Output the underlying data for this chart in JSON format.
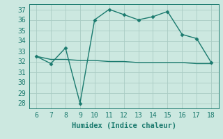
{
  "line1_x": [
    6,
    7,
    8,
    9,
    10,
    11,
    12,
    13,
    14,
    15,
    16,
    17,
    18
  ],
  "line1_y": [
    32.5,
    31.8,
    33.3,
    28.0,
    36.0,
    37.0,
    36.5,
    36.0,
    36.3,
    36.8,
    34.6,
    34.2,
    31.9
  ],
  "line2_x": [
    6,
    7,
    8,
    9,
    10,
    11,
    12,
    13,
    14,
    15,
    16,
    17,
    18
  ],
  "line2_y": [
    32.5,
    32.2,
    32.2,
    32.1,
    32.1,
    32.0,
    32.0,
    31.9,
    31.9,
    31.9,
    31.9,
    31.8,
    31.8
  ],
  "line_color": "#1a7a6e",
  "bg_color": "#cce8e0",
  "grid_color": "#aaccC4",
  "xlabel": "Humidex (Indice chaleur)",
  "xlim": [
    5.5,
    18.5
  ],
  "ylim": [
    27.5,
    37.5
  ],
  "xticks": [
    6,
    7,
    8,
    9,
    10,
    11,
    12,
    13,
    14,
    15,
    16,
    17,
    18
  ],
  "yticks": [
    28,
    29,
    30,
    31,
    32,
    33,
    34,
    35,
    36,
    37
  ],
  "xlabel_fontsize": 7.5,
  "tick_fontsize": 7,
  "line_width": 1.0,
  "marker": "D",
  "marker_size": 2.5
}
